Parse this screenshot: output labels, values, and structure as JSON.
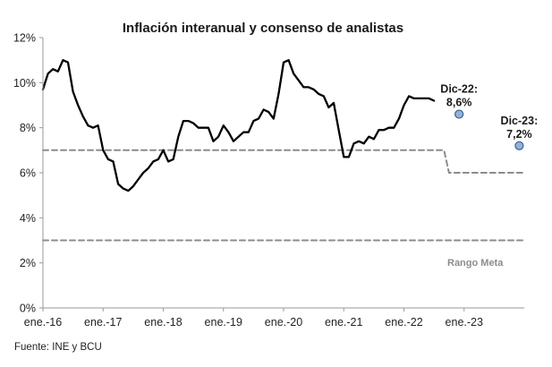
{
  "chart_data": {
    "type": "line",
    "title": "Inflación interanual y consenso de analistas",
    "source": "Fuente: INE y BCU",
    "xlabel": "",
    "ylabel": "",
    "ylim": [
      0,
      12
    ],
    "y_ticks": [
      0,
      2,
      4,
      6,
      8,
      10,
      12
    ],
    "y_tick_labels": [
      "0%",
      "2%",
      "4%",
      "6%",
      "8%",
      "10%",
      "12%"
    ],
    "x_ticks": [
      0,
      12,
      24,
      36,
      48,
      60,
      72,
      84
    ],
    "x_tick_labels": [
      "ene.-16",
      "ene.-17",
      "ene.-18",
      "ene.-19",
      "ene.-20",
      "ene.-21",
      "ene.-22",
      "ene.-23"
    ],
    "xlim": [
      0,
      96
    ],
    "grid": false,
    "series": [
      {
        "name": "Inflación interanual",
        "style": "line",
        "color": "#000000",
        "x": [
          0,
          1,
          2,
          3,
          4,
          5,
          6,
          7,
          8,
          9,
          10,
          11,
          12,
          13,
          14,
          15,
          16,
          17,
          18,
          19,
          20,
          21,
          22,
          23,
          24,
          25,
          26,
          27,
          28,
          29,
          30,
          31,
          32,
          33,
          34,
          35,
          36,
          37,
          38,
          39,
          40,
          41,
          42,
          43,
          44,
          45,
          46,
          47,
          48,
          49,
          50,
          51,
          52,
          53,
          54,
          55,
          56,
          57,
          58,
          59,
          60,
          61,
          62,
          63,
          64,
          65,
          66,
          67,
          68,
          69,
          70,
          71,
          72,
          73,
          74,
          75,
          76,
          77,
          78
        ],
        "values": [
          9.7,
          10.4,
          10.6,
          10.5,
          11.0,
          10.9,
          9.6,
          9.0,
          8.5,
          8.1,
          8.0,
          8.1,
          7.0,
          6.6,
          6.5,
          5.5,
          5.3,
          5.2,
          5.4,
          5.7,
          6.0,
          6.2,
          6.5,
          6.6,
          7.0,
          6.5,
          6.6,
          7.6,
          8.3,
          8.3,
          8.2,
          8.0,
          8.0,
          8.0,
          7.4,
          7.6,
          8.1,
          7.8,
          7.4,
          7.6,
          7.8,
          7.8,
          8.3,
          8.4,
          8.8,
          8.7,
          8.4,
          9.5,
          10.9,
          11.0,
          10.4,
          10.1,
          9.8,
          9.8,
          9.7,
          9.5,
          9.4,
          8.9,
          9.1,
          7.9,
          6.7,
          6.7,
          7.3,
          7.4,
          7.3,
          7.6,
          7.5,
          7.9,
          7.9,
          8.0,
          8.0,
          8.4,
          9.0,
          9.4,
          9.3,
          9.3,
          9.3,
          9.3,
          9.2
        ]
      },
      {
        "name": "Rango Meta superior",
        "style": "dashed",
        "color": "#8c8c8c",
        "x": [
          0,
          80,
          81,
          96
        ],
        "values": [
          7,
          7,
          6,
          6
        ]
      },
      {
        "name": "Rango Meta inferior",
        "style": "dashed",
        "color": "#8c8c8c",
        "x": [
          0,
          96
        ],
        "values": [
          3,
          3
        ]
      },
      {
        "name": "Consenso de analistas",
        "style": "points",
        "color": "#8fb3d9",
        "x": [
          83,
          95
        ],
        "values": [
          8.6,
          7.2
        ]
      }
    ],
    "annotations": [
      {
        "label": "Dic-22:",
        "value_label": "8,6%",
        "x": 83,
        "y": 8.6
      },
      {
        "label": "Dic-23:",
        "value_label": "7,2%",
        "x": 95,
        "y": 7.2
      }
    ],
    "band_label": "Rango Meta"
  }
}
